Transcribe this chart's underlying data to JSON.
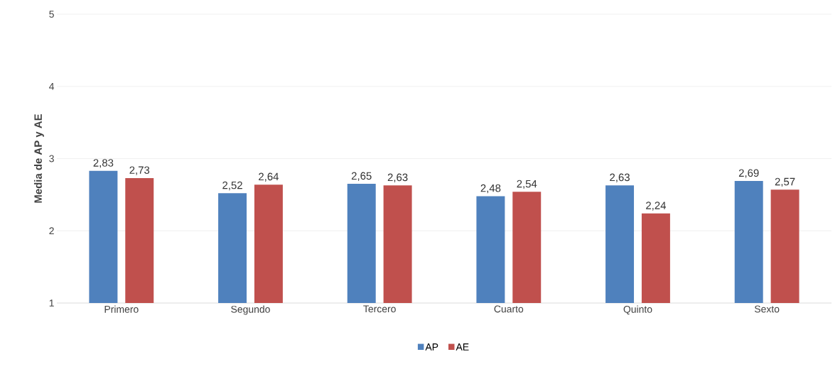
{
  "chart_data": {
    "type": "bar",
    "ylabel": "Media de AP y AE",
    "categories": [
      "Primero",
      "Segundo",
      "Tercero",
      "Cuarto",
      "Quinto",
      "Sexto"
    ],
    "series": [
      {
        "name": "AP",
        "color": "#4f81bd",
        "values": [
          2.83,
          2.52,
          2.65,
          2.48,
          2.63,
          2.69
        ],
        "value_labels": [
          "2,83",
          "2,52",
          "2,65",
          "2,48",
          "2,63",
          "2,69"
        ]
      },
      {
        "name": "AE",
        "color": "#c0504d",
        "values": [
          2.73,
          2.64,
          2.63,
          2.54,
          2.24,
          2.57
        ],
        "value_labels": [
          "2,73",
          "2,64",
          "2,63",
          "2,54",
          "2,24",
          "2,57"
        ]
      }
    ],
    "ylim": [
      1,
      5
    ],
    "yticks": [
      1,
      2,
      3,
      4,
      5
    ],
    "grid": "y",
    "legend": "bottom"
  }
}
